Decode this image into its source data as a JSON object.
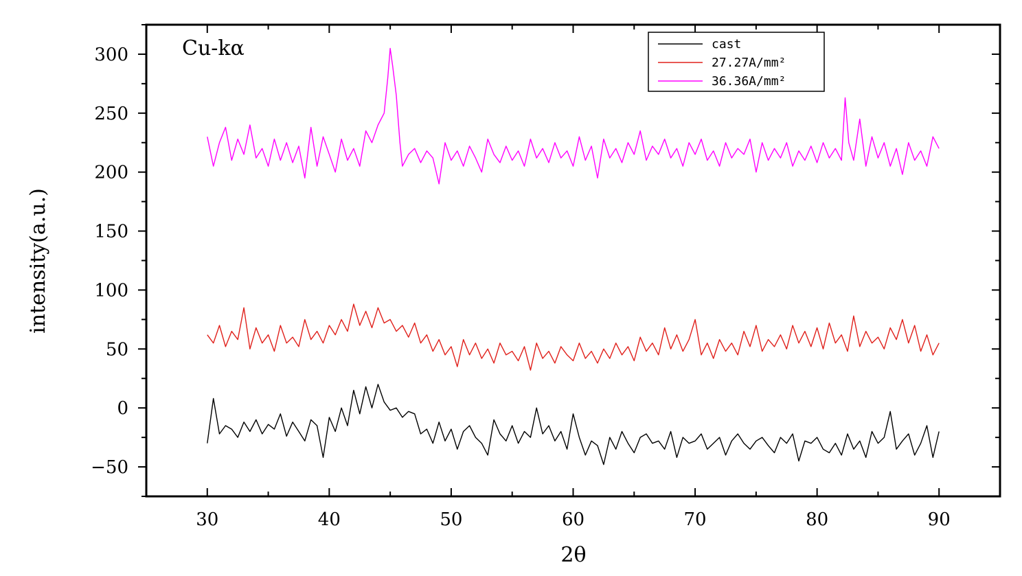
{
  "chart_data": {
    "type": "line",
    "title": "",
    "xlabel": "2θ",
    "ylabel": "intensity(a.u.)",
    "xlim": [
      25,
      95
    ],
    "ylim": [
      -75,
      325
    ],
    "xticks": [
      30,
      40,
      50,
      60,
      70,
      80,
      90
    ],
    "yticks": [
      -50,
      0,
      50,
      100,
      150,
      200,
      250,
      300
    ],
    "annotation": "Cu-kα",
    "legend_position": "top-right",
    "series": [
      {
        "name": "cast",
        "color": "#000000",
        "x": [
          30.0,
          30.5,
          31.0,
          31.5,
          32.0,
          32.5,
          33.0,
          33.5,
          34.0,
          34.5,
          35.0,
          35.5,
          36.0,
          36.5,
          37.0,
          37.5,
          38.0,
          38.5,
          39.0,
          39.5,
          40.0,
          40.5,
          41.0,
          41.5,
          42.0,
          42.5,
          43.0,
          43.5,
          44.0,
          44.5,
          45.0,
          45.5,
          46.0,
          46.5,
          47.0,
          47.5,
          48.0,
          48.5,
          49.0,
          49.5,
          50.0,
          50.5,
          51.0,
          51.5,
          52.0,
          52.5,
          53.0,
          53.5,
          54.0,
          54.5,
          55.0,
          55.5,
          56.0,
          56.5,
          57.0,
          57.5,
          58.0,
          58.5,
          59.0,
          59.5,
          60.0,
          60.5,
          61.0,
          61.5,
          62.0,
          62.5,
          63.0,
          63.5,
          64.0,
          64.5,
          65.0,
          65.5,
          66.0,
          66.5,
          67.0,
          67.5,
          68.0,
          68.5,
          69.0,
          69.5,
          70.0,
          70.5,
          71.0,
          71.5,
          72.0,
          72.5,
          73.0,
          73.5,
          74.0,
          74.5,
          75.0,
          75.5,
          76.0,
          76.5,
          77.0,
          77.5,
          78.0,
          78.5,
          79.0,
          79.5,
          80.0,
          80.5,
          81.0,
          81.5,
          82.0,
          82.5,
          83.0,
          83.5,
          84.0,
          84.5,
          85.0,
          85.5,
          86.0,
          86.5,
          87.0,
          87.5,
          88.0,
          88.5,
          89.0,
          89.5,
          90.0
        ],
        "values": [
          -30,
          8,
          -22,
          -15,
          -18,
          -25,
          -12,
          -20,
          -10,
          -22,
          -14,
          -18,
          -5,
          -24,
          -12,
          -20,
          -28,
          -10,
          -15,
          -42,
          -8,
          -20,
          0,
          -15,
          15,
          -5,
          18,
          0,
          20,
          5,
          -2,
          0,
          -8,
          -3,
          -5,
          -22,
          -18,
          -30,
          -12,
          -28,
          -18,
          -35,
          -20,
          -15,
          -25,
          -30,
          -40,
          -10,
          -22,
          -28,
          -15,
          -30,
          -20,
          -25,
          0,
          -22,
          -15,
          -28,
          -20,
          -35,
          -5,
          -25,
          -40,
          -28,
          -32,
          -48,
          -25,
          -35,
          -20,
          -30,
          -38,
          -25,
          -22,
          -30,
          -28,
          -35,
          -20,
          -42,
          -25,
          -30,
          -28,
          -22,
          -35,
          -30,
          -25,
          -40,
          -28,
          -22,
          -30,
          -35,
          -28,
          -25,
          -32,
          -38,
          -25,
          -30,
          -22,
          -45,
          -28,
          -30,
          -25,
          -35,
          -38,
          -30,
          -40,
          -22,
          -35,
          -28,
          -42,
          -20,
          -30,
          -25,
          -3,
          -35,
          -28,
          -22,
          -40,
          -30,
          -15,
          -42,
          -20
        ]
      },
      {
        "name": "27.27A/mm²",
        "color": "#e0201b",
        "x": [
          30.0,
          30.5,
          31.0,
          31.5,
          32.0,
          32.5,
          33.0,
          33.5,
          34.0,
          34.5,
          35.0,
          35.5,
          36.0,
          36.5,
          37.0,
          37.5,
          38.0,
          38.5,
          39.0,
          39.5,
          40.0,
          40.5,
          41.0,
          41.5,
          42.0,
          42.5,
          43.0,
          43.5,
          44.0,
          44.5,
          45.0,
          45.5,
          46.0,
          46.5,
          47.0,
          47.5,
          48.0,
          48.5,
          49.0,
          49.5,
          50.0,
          50.5,
          51.0,
          51.5,
          52.0,
          52.5,
          53.0,
          53.5,
          54.0,
          54.5,
          55.0,
          55.5,
          56.0,
          56.5,
          57.0,
          57.5,
          58.0,
          58.5,
          59.0,
          59.5,
          60.0,
          60.5,
          61.0,
          61.5,
          62.0,
          62.5,
          63.0,
          63.5,
          64.0,
          64.5,
          65.0,
          65.5,
          66.0,
          66.5,
          67.0,
          67.5,
          68.0,
          68.5,
          69.0,
          69.5,
          70.0,
          70.5,
          71.0,
          71.5,
          72.0,
          72.5,
          73.0,
          73.5,
          74.0,
          74.5,
          75.0,
          75.5,
          76.0,
          76.5,
          77.0,
          77.5,
          78.0,
          78.5,
          79.0,
          79.5,
          80.0,
          80.5,
          81.0,
          81.5,
          82.0,
          82.5,
          83.0,
          83.5,
          84.0,
          84.5,
          85.0,
          85.5,
          86.0,
          86.5,
          87.0,
          87.5,
          88.0,
          88.5,
          89.0,
          89.5,
          90.0
        ],
        "values": [
          62,
          55,
          70,
          52,
          65,
          58,
          85,
          50,
          68,
          55,
          62,
          48,
          70,
          55,
          60,
          52,
          75,
          58,
          65,
          55,
          70,
          62,
          75,
          65,
          88,
          70,
          82,
          68,
          85,
          72,
          75,
          65,
          70,
          60,
          72,
          55,
          62,
          48,
          58,
          45,
          52,
          35,
          58,
          45,
          55,
          42,
          50,
          38,
          55,
          45,
          48,
          40,
          52,
          32,
          55,
          42,
          48,
          38,
          52,
          45,
          40,
          55,
          42,
          48,
          38,
          50,
          42,
          55,
          45,
          52,
          40,
          60,
          48,
          55,
          45,
          68,
          50,
          62,
          48,
          58,
          75,
          45,
          55,
          42,
          58,
          48,
          55,
          45,
          65,
          52,
          70,
          48,
          58,
          52,
          62,
          50,
          70,
          55,
          65,
          52,
          68,
          50,
          72,
          55,
          62,
          48,
          78,
          52,
          65,
          55,
          60,
          50,
          68,
          58,
          75,
          55,
          70,
          48,
          62,
          45,
          55
        ]
      },
      {
        "name": "36.36A/mm²",
        "color": "#ff00ff",
        "x": [
          30.0,
          30.5,
          31.0,
          31.5,
          32.0,
          32.5,
          33.0,
          33.5,
          34.0,
          34.5,
          35.0,
          35.5,
          36.0,
          36.5,
          37.0,
          37.5,
          38.0,
          38.5,
          39.0,
          39.5,
          40.0,
          40.5,
          41.0,
          41.5,
          42.0,
          42.5,
          43.0,
          43.5,
          44.0,
          44.5,
          44.8,
          45.0,
          45.2,
          45.5,
          45.8,
          46.0,
          46.5,
          47.0,
          47.5,
          48.0,
          48.5,
          49.0,
          49.5,
          50.0,
          50.5,
          51.0,
          51.5,
          52.0,
          52.5,
          53.0,
          53.5,
          54.0,
          54.5,
          55.0,
          55.5,
          56.0,
          56.5,
          57.0,
          57.5,
          58.0,
          58.5,
          59.0,
          59.5,
          60.0,
          60.5,
          61.0,
          61.5,
          62.0,
          62.5,
          63.0,
          63.5,
          64.0,
          64.5,
          65.0,
          65.5,
          66.0,
          66.5,
          67.0,
          67.5,
          68.0,
          68.5,
          69.0,
          69.5,
          70.0,
          70.5,
          71.0,
          71.5,
          72.0,
          72.5,
          73.0,
          73.5,
          74.0,
          74.5,
          75.0,
          75.5,
          76.0,
          76.5,
          77.0,
          77.5,
          78.0,
          78.5,
          79.0,
          79.5,
          80.0,
          80.5,
          81.0,
          81.5,
          82.0,
          82.3,
          82.6,
          83.0,
          83.5,
          84.0,
          84.5,
          85.0,
          85.5,
          86.0,
          86.5,
          87.0,
          87.5,
          88.0,
          88.5,
          89.0,
          89.5,
          90.0
        ],
        "values": [
          230,
          205,
          225,
          238,
          210,
          228,
          215,
          240,
          212,
          220,
          205,
          228,
          210,
          225,
          208,
          222,
          195,
          238,
          205,
          230,
          215,
          200,
          228,
          210,
          220,
          205,
          235,
          225,
          240,
          250,
          280,
          305,
          290,
          265,
          225,
          205,
          215,
          220,
          208,
          218,
          212,
          190,
          225,
          210,
          218,
          205,
          222,
          212,
          200,
          228,
          215,
          208,
          222,
          210,
          218,
          205,
          228,
          212,
          220,
          208,
          225,
          212,
          218,
          205,
          230,
          210,
          222,
          195,
          228,
          212,
          220,
          208,
          225,
          215,
          235,
          210,
          222,
          215,
          228,
          212,
          220,
          205,
          225,
          215,
          228,
          210,
          218,
          205,
          225,
          212,
          220,
          215,
          228,
          200,
          225,
          210,
          220,
          212,
          225,
          205,
          218,
          210,
          222,
          208,
          225,
          212,
          220,
          210,
          263,
          225,
          210,
          245,
          205,
          230,
          212,
          225,
          205,
          220,
          198,
          225,
          210,
          218,
          205,
          230,
          220
        ]
      }
    ]
  }
}
